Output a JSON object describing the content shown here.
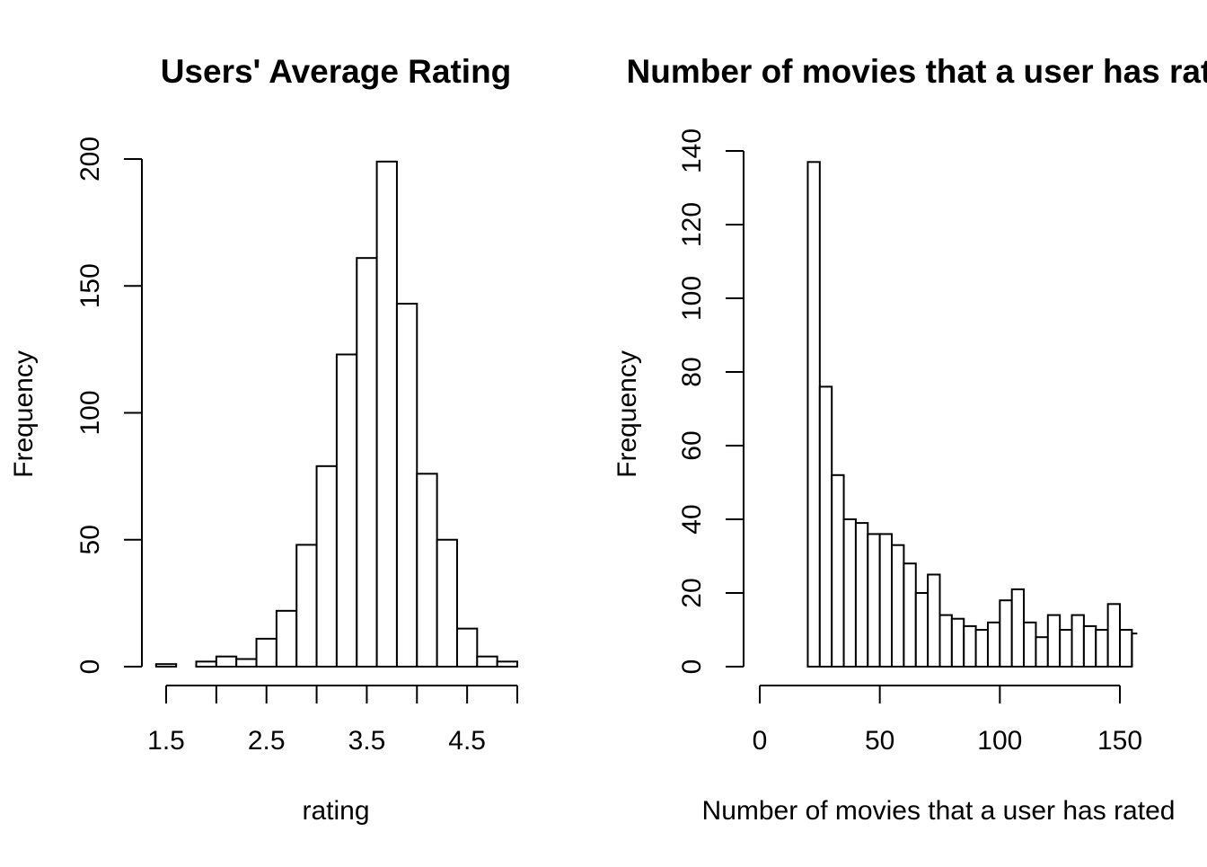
{
  "colors": {
    "background": "#ffffff",
    "bar_fill": "#ffffff",
    "stroke": "#000000"
  },
  "chart_data": [
    {
      "type": "bar",
      "title": "Users' Average Rating",
      "xlabel": "rating",
      "ylabel": "Frequency",
      "xlim": [
        1.5,
        5.0
      ],
      "ylim": [
        0,
        200
      ],
      "x_ticks": [
        1.5,
        2.0,
        2.5,
        3.0,
        3.5,
        4.0,
        4.5,
        5.0
      ],
      "x_tick_labels": [
        "1.5",
        "",
        "2.5",
        "",
        "3.5",
        "",
        "4.5",
        ""
      ],
      "y_ticks": [
        0,
        50,
        100,
        150,
        200
      ],
      "y_tick_labels": [
        "0",
        "50",
        "100",
        "150",
        "200"
      ],
      "bin_edges": [
        1.4,
        1.6,
        1.8,
        2.0,
        2.2,
        2.4,
        2.6,
        2.8,
        3.0,
        3.2,
        3.4,
        3.6,
        3.8,
        4.0,
        4.2,
        4.4,
        4.6,
        4.8,
        5.0
      ],
      "values": [
        1,
        0,
        2,
        4,
        3,
        11,
        22,
        48,
        79,
        123,
        161,
        199,
        143,
        76,
        50,
        15,
        4,
        2
      ],
      "grid": false,
      "legend": "none"
    },
    {
      "type": "bar",
      "title": "Number of movies that a user has rated",
      "xlabel": "Number of movies that a user has rated",
      "ylabel": "Frequency",
      "xlim": [
        0,
        150
      ],
      "ylim": [
        0,
        140
      ],
      "x_ticks": [
        0,
        50,
        100,
        150
      ],
      "x_tick_labels": [
        "0",
        "50",
        "100",
        "150"
      ],
      "y_ticks": [
        0,
        20,
        40,
        60,
        80,
        100,
        120,
        140
      ],
      "y_tick_labels": [
        "0",
        "20",
        "40",
        "60",
        "80",
        "100",
        "120",
        "140"
      ],
      "bin_edges": [
        20,
        25,
        30,
        35,
        40,
        45,
        50,
        55,
        60,
        65,
        70,
        75,
        80,
        85,
        90,
        95,
        100,
        105,
        110,
        115,
        120,
        125,
        130,
        135,
        140,
        145,
        150,
        155
      ],
      "values": [
        137,
        76,
        52,
        40,
        39,
        36,
        36,
        33,
        28,
        20,
        25,
        14,
        13,
        11,
        10,
        12,
        18,
        21,
        12,
        8,
        14,
        10,
        14,
        11,
        10,
        17,
        10
      ],
      "truncated_right_bar_value": 9,
      "grid": false,
      "legend": "none"
    }
  ]
}
